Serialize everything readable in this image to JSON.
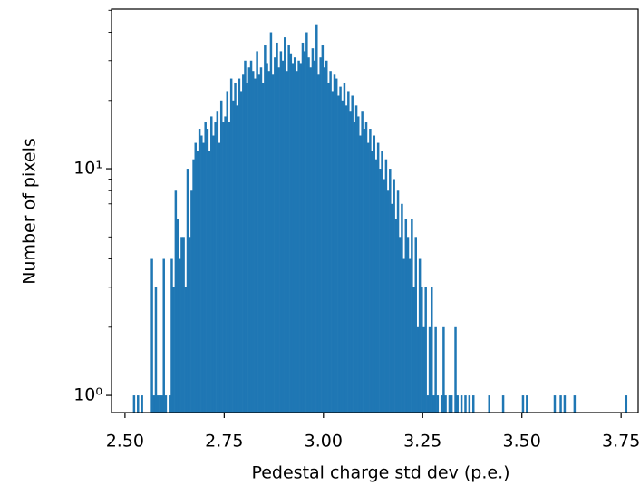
{
  "chart_data": {
    "type": "histogram",
    "xlabel": "Pedestal charge std dev (p.e.)",
    "ylabel": "Number of pixels",
    "color": "#1f77b4",
    "log_y": true,
    "xlim": [
      2.466,
      3.793
    ],
    "xticks": [
      {
        "value": 2.5,
        "label": "2.50"
      },
      2.75,
      {
        "value": 3.0,
        "label": "3.00"
      },
      3.25,
      {
        "value": 3.5,
        "label": "3.50"
      },
      3.75
    ],
    "ylim": [
      0.84,
      50.6
    ],
    "yticks": [
      {
        "value": 1,
        "label": "10⁰"
      },
      {
        "value": 10,
        "label": "10¹"
      }
    ],
    "yminorticks": [
      2,
      3,
      4,
      5,
      6,
      7,
      8,
      9,
      20,
      30,
      40,
      50
    ],
    "bins": [
      2.515,
      2.52,
      2.525,
      2.53,
      2.535,
      2.54,
      2.545,
      2.55,
      2.555,
      2.56,
      2.565,
      2.57,
      2.575,
      2.58,
      2.585,
      2.59,
      2.595,
      2.6,
      2.605,
      2.61,
      2.615,
      2.62,
      2.625,
      2.63,
      2.635,
      2.64,
      2.645,
      2.65,
      2.655,
      2.66,
      2.665,
      2.67,
      2.675,
      2.68,
      2.685,
      2.69,
      2.695,
      2.7,
      2.705,
      2.71,
      2.715,
      2.72,
      2.725,
      2.73,
      2.735,
      2.74,
      2.745,
      2.75,
      2.755,
      2.76,
      2.765,
      2.77,
      2.775,
      2.78,
      2.785,
      2.79,
      2.795,
      2.8,
      2.805,
      2.81,
      2.815,
      2.82,
      2.825,
      2.83,
      2.835,
      2.84,
      2.845,
      2.85,
      2.855,
      2.86,
      2.865,
      2.87,
      2.875,
      2.88,
      2.885,
      2.89,
      2.895,
      2.9,
      2.905,
      2.91,
      2.915,
      2.92,
      2.925,
      2.93,
      2.935,
      2.94,
      2.945,
      2.95,
      2.955,
      2.96,
      2.965,
      2.97,
      2.975,
      2.98,
      2.985,
      2.99,
      2.995,
      3.0,
      3.005,
      3.01,
      3.015,
      3.02,
      3.025,
      3.03,
      3.035,
      3.04,
      3.045,
      3.05,
      3.055,
      3.06,
      3.065,
      3.07,
      3.075,
      3.08,
      3.085,
      3.09,
      3.095,
      3.1,
      3.105,
      3.11,
      3.115,
      3.12,
      3.125,
      3.13,
      3.135,
      3.14,
      3.145,
      3.15,
      3.155,
      3.16,
      3.165,
      3.17,
      3.175,
      3.18,
      3.185,
      3.19,
      3.195,
      3.2,
      3.205,
      3.21,
      3.215,
      3.22,
      3.225,
      3.23,
      3.235,
      3.24,
      3.245,
      3.25,
      3.255,
      3.26,
      3.265,
      3.27,
      3.275,
      3.28,
      3.285,
      3.29,
      3.295,
      3.3,
      3.305,
      3.31,
      3.315,
      3.32,
      3.325,
      3.33,
      3.335,
      3.34,
      3.345,
      3.35,
      3.355,
      3.36,
      3.365,
      3.37,
      3.375,
      3.38,
      3.385,
      3.39,
      3.395,
      3.4,
      3.405,
      3.41,
      3.415,
      3.42,
      3.425,
      3.43,
      3.435,
      3.44,
      3.445,
      3.45,
      3.455,
      3.46,
      3.465,
      3.47,
      3.475,
      3.48,
      3.485,
      3.49,
      3.495,
      3.5,
      3.505,
      3.51,
      3.515,
      3.52,
      3.525,
      3.53,
      3.535,
      3.54,
      3.545,
      3.55,
      3.555,
      3.56,
      3.565,
      3.57,
      3.575,
      3.58,
      3.585,
      3.59,
      3.595,
      3.6,
      3.605,
      3.61,
      3.615,
      3.62,
      3.625,
      3.63,
      3.635,
      3.64,
      3.645,
      3.65,
      3.655,
      3.66,
      3.665,
      3.67,
      3.675,
      3.68,
      3.685,
      3.69,
      3.695,
      3.7,
      3.705,
      3.71,
      3.715,
      3.72,
      3.725,
      3.73,
      3.735,
      3.74,
      3.745,
      3.75,
      3.755,
      3.76,
      3.765
    ],
    "values": [
      0,
      1,
      0,
      1,
      0,
      1,
      0,
      0,
      0,
      0,
      4,
      1,
      3,
      1,
      1,
      1,
      4,
      1,
      0,
      1,
      4,
      3,
      8,
      6,
      4,
      5,
      5,
      3,
      10,
      5,
      8,
      11,
      13,
      12,
      15,
      14,
      13,
      16,
      15,
      12,
      17,
      14,
      16,
      18,
      13,
      20,
      16,
      17,
      22,
      16,
      25,
      20,
      24,
      19,
      25,
      22,
      26,
      30,
      24,
      28,
      30,
      27,
      25,
      33,
      26,
      28,
      24,
      35,
      29,
      27,
      40,
      26,
      31,
      36,
      28,
      33,
      30,
      38,
      27,
      35,
      32,
      29,
      31,
      27,
      30,
      29,
      36,
      33,
      40,
      31,
      28,
      34,
      30,
      43,
      26,
      31,
      35,
      28,
      30,
      24,
      27,
      22,
      26,
      25,
      21,
      23,
      20,
      24,
      19,
      22,
      18,
      21,
      16,
      19,
      17,
      14,
      18,
      15,
      16,
      13,
      15,
      12,
      14,
      11,
      13,
      10,
      12,
      9,
      11,
      8,
      10,
      7,
      9,
      6,
      8,
      5,
      7,
      4,
      6,
      5,
      4,
      6,
      3,
      5,
      2,
      4,
      3,
      2,
      3,
      1,
      2,
      3,
      1,
      2,
      1,
      0,
      1,
      2,
      1,
      0,
      1,
      1,
      0,
      2,
      1,
      0,
      1,
      0,
      1,
      0,
      1,
      0,
      1,
      0,
      0,
      0,
      0,
      0,
      0,
      0,
      1,
      0,
      0,
      0,
      0,
      0,
      0,
      1,
      0,
      0,
      0,
      0,
      0,
      0,
      0,
      0,
      0,
      1,
      0,
      1,
      0,
      0,
      0,
      0,
      0,
      0,
      0,
      0,
      0,
      0,
      0,
      0,
      0,
      1,
      0,
      0,
      1,
      0,
      1,
      0,
      0,
      0,
      0,
      1,
      0,
      0,
      0,
      0,
      0,
      0,
      0,
      0,
      0,
      0,
      0,
      0,
      0,
      0,
      0,
      0,
      0,
      0,
      0,
      0,
      0,
      0,
      0,
      0,
      0,
      1
    ]
  }
}
